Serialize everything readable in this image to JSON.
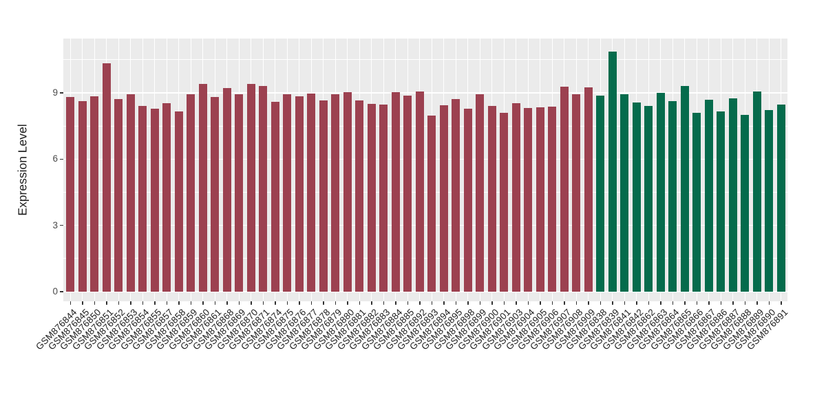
{
  "figure": {
    "background": "#ffffff",
    "panel_background": "#EBEBEB",
    "grid_color": "#ffffff"
  },
  "chart_data": {
    "type": "bar",
    "title": "",
    "xlabel": "",
    "ylabel": "Expression Level",
    "y_ticks": [
      0,
      3,
      6,
      9
    ],
    "y_minor_ticks": [
      1.5,
      4.5,
      7.5,
      10.5
    ],
    "ylim": [
      0,
      11.6
    ],
    "grid": true,
    "legend": "none",
    "groups": {
      "group1": {
        "color": "#9C4150"
      },
      "group2": {
        "color": "#056B4C"
      }
    },
    "bars": [
      {
        "label": "GSM876844",
        "value": 8.81,
        "group": "group1"
      },
      {
        "label": "GSM876845",
        "value": 8.62,
        "group": "group1"
      },
      {
        "label": "GSM876850",
        "value": 8.84,
        "group": "group1"
      },
      {
        "label": "GSM876851",
        "value": 10.35,
        "group": "group1"
      },
      {
        "label": "GSM876852",
        "value": 8.73,
        "group": "group1"
      },
      {
        "label": "GSM876853",
        "value": 8.95,
        "group": "group1"
      },
      {
        "label": "GSM876854",
        "value": 8.4,
        "group": "group1"
      },
      {
        "label": "GSM876855",
        "value": 8.3,
        "group": "group1"
      },
      {
        "label": "GSM876857",
        "value": 8.55,
        "group": "group1"
      },
      {
        "label": "GSM876858",
        "value": 8.15,
        "group": "group1"
      },
      {
        "label": "GSM876859",
        "value": 8.93,
        "group": "group1"
      },
      {
        "label": "GSM876860",
        "value": 9.41,
        "group": "group1"
      },
      {
        "label": "GSM876861",
        "value": 8.81,
        "group": "group1"
      },
      {
        "label": "GSM876868",
        "value": 9.22,
        "group": "group1"
      },
      {
        "label": "GSM876869",
        "value": 8.95,
        "group": "group1"
      },
      {
        "label": "GSM876870",
        "value": 9.41,
        "group": "group1"
      },
      {
        "label": "GSM876871",
        "value": 9.31,
        "group": "group1"
      },
      {
        "label": "GSM876874",
        "value": 8.6,
        "group": "group1"
      },
      {
        "label": "GSM876875",
        "value": 8.95,
        "group": "group1"
      },
      {
        "label": "GSM876876",
        "value": 8.84,
        "group": "group1"
      },
      {
        "label": "GSM876877",
        "value": 8.97,
        "group": "group1"
      },
      {
        "label": "GSM876878",
        "value": 8.66,
        "group": "group1"
      },
      {
        "label": "GSM876879",
        "value": 8.94,
        "group": "group1"
      },
      {
        "label": "GSM876880",
        "value": 9.04,
        "group": "group1"
      },
      {
        "label": "GSM876881",
        "value": 8.67,
        "group": "group1"
      },
      {
        "label": "GSM876882",
        "value": 8.51,
        "group": "group1"
      },
      {
        "label": "GSM876883",
        "value": 8.47,
        "group": "group1"
      },
      {
        "label": "GSM876884",
        "value": 9.03,
        "group": "group1"
      },
      {
        "label": "GSM876885",
        "value": 8.88,
        "group": "group1"
      },
      {
        "label": "GSM876892",
        "value": 9.05,
        "group": "group1"
      },
      {
        "label": "GSM876893",
        "value": 7.98,
        "group": "group1"
      },
      {
        "label": "GSM876894",
        "value": 8.45,
        "group": "group1"
      },
      {
        "label": "GSM876895",
        "value": 8.73,
        "group": "group1"
      },
      {
        "label": "GSM876898",
        "value": 8.29,
        "group": "group1"
      },
      {
        "label": "GSM876899",
        "value": 8.94,
        "group": "group1"
      },
      {
        "label": "GSM876900",
        "value": 8.42,
        "group": "group1"
      },
      {
        "label": "GSM876901",
        "value": 8.09,
        "group": "group1"
      },
      {
        "label": "GSM876903",
        "value": 8.53,
        "group": "group1"
      },
      {
        "label": "GSM876904",
        "value": 8.32,
        "group": "group1"
      },
      {
        "label": "GSM876905",
        "value": 8.36,
        "group": "group1"
      },
      {
        "label": "GSM876906",
        "value": 8.38,
        "group": "group1"
      },
      {
        "label": "GSM876907",
        "value": 9.28,
        "group": "group1"
      },
      {
        "label": "GSM876908",
        "value": 8.95,
        "group": "group1"
      },
      {
        "label": "GSM876909",
        "value": 9.25,
        "group": "group1"
      },
      {
        "label": "GSM876838",
        "value": 8.87,
        "group": "group2"
      },
      {
        "label": "GSM876839",
        "value": 10.88,
        "group": "group2"
      },
      {
        "label": "GSM876841",
        "value": 8.93,
        "group": "group2"
      },
      {
        "label": "GSM876842",
        "value": 8.58,
        "group": "group2"
      },
      {
        "label": "GSM876862",
        "value": 8.4,
        "group": "group2"
      },
      {
        "label": "GSM876863",
        "value": 8.99,
        "group": "group2"
      },
      {
        "label": "GSM876864",
        "value": 8.63,
        "group": "group2"
      },
      {
        "label": "GSM876865",
        "value": 9.3,
        "group": "group2"
      },
      {
        "label": "GSM876866",
        "value": 8.1,
        "group": "group2"
      },
      {
        "label": "GSM876867",
        "value": 8.69,
        "group": "group2"
      },
      {
        "label": "GSM876886",
        "value": 8.16,
        "group": "group2"
      },
      {
        "label": "GSM876887",
        "value": 8.75,
        "group": "group2"
      },
      {
        "label": "GSM876888",
        "value": 8.01,
        "group": "group2"
      },
      {
        "label": "GSM876889",
        "value": 9.06,
        "group": "group2"
      },
      {
        "label": "GSM876890",
        "value": 8.22,
        "group": "group2"
      },
      {
        "label": "GSM876891",
        "value": 8.46,
        "group": "group2"
      }
    ]
  }
}
